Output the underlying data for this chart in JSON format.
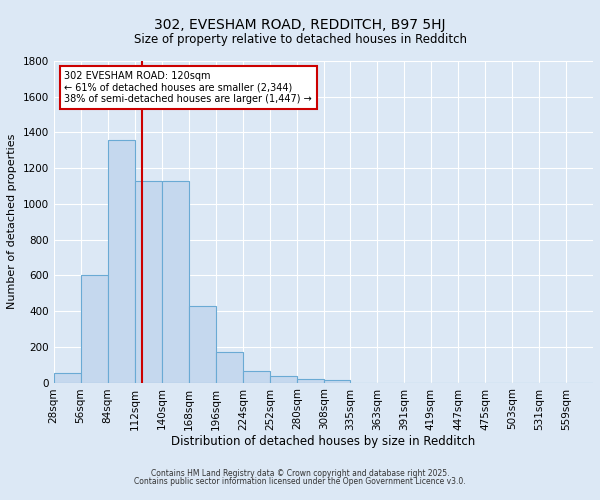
{
  "title1": "302, EVESHAM ROAD, REDDITCH, B97 5HJ",
  "title2": "Size of property relative to detached houses in Redditch",
  "xlabel": "Distribution of detached houses by size in Redditch",
  "ylabel": "Number of detached properties",
  "bar_color": "#c5d8ee",
  "bar_edge_color": "#6aaad4",
  "bg_color": "#dce8f5",
  "grid_color": "#ffffff",
  "bins": [
    28,
    56,
    84,
    112,
    140,
    168,
    196,
    224,
    252,
    280,
    308,
    335,
    363,
    391,
    419,
    447,
    475,
    503,
    531,
    559,
    587
  ],
  "values": [
    55,
    600,
    1360,
    1130,
    1130,
    430,
    170,
    65,
    35,
    20,
    15,
    0,
    0,
    0,
    0,
    0,
    0,
    0,
    0,
    0
  ],
  "redline_x": 120,
  "ylim": [
    0,
    1800
  ],
  "yticks": [
    0,
    200,
    400,
    600,
    800,
    1000,
    1200,
    1400,
    1600,
    1800
  ],
  "annotation_text": "302 EVESHAM ROAD: 120sqm\n← 61% of detached houses are smaller (2,344)\n38% of semi-detached houses are larger (1,447) →",
  "annotation_box_color": "#ffffff",
  "annotation_border_color": "#cc0000",
  "redline_color": "#cc0000",
  "footnote1": "Contains HM Land Registry data © Crown copyright and database right 2025.",
  "footnote2": "Contains public sector information licensed under the Open Government Licence v3.0."
}
